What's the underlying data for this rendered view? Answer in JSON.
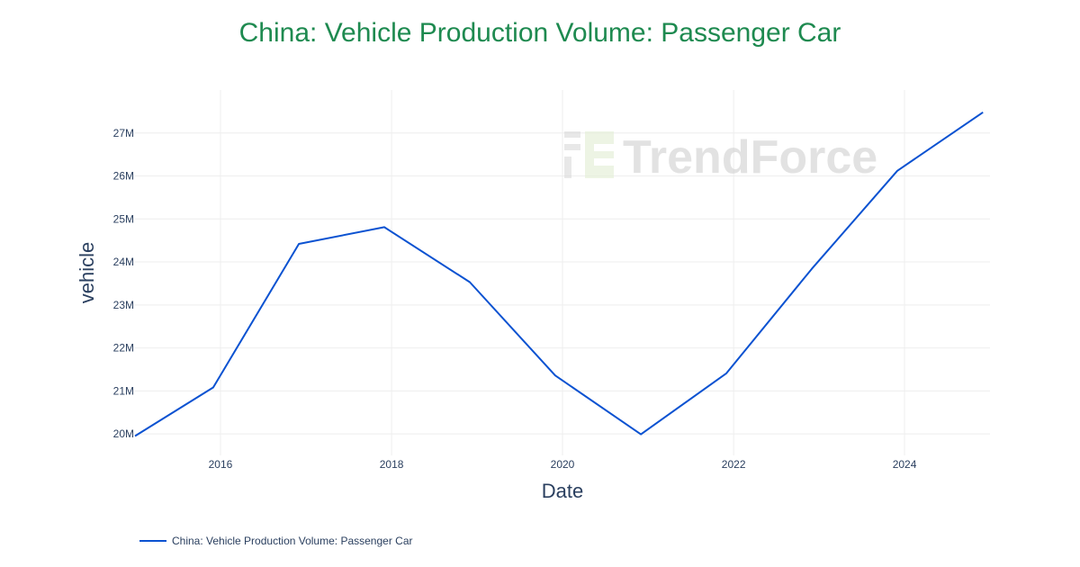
{
  "title": "China: Vehicle Production Volume: Passenger Car",
  "watermark": "TrendForce",
  "legend": {
    "label": "China: Vehicle Production Volume: Passenger Car"
  },
  "colors": {
    "title": "#1e8a50",
    "line": "#0b52d1",
    "axis_text": "#2a3f5f",
    "grid": "#eeeeee"
  },
  "chart_data": {
    "type": "line",
    "title": "China: Vehicle Production Volume: Passenger Car",
    "xlabel": "Date",
    "ylabel": "vehicle",
    "x_tick_labels": [
      "2016",
      "2018",
      "2020",
      "2022",
      "2024"
    ],
    "y_tick_labels": [
      "20M",
      "21M",
      "22M",
      "23M",
      "24M",
      "25M",
      "26M",
      "27M"
    ],
    "y_tick_values": [
      20000000,
      21000000,
      22000000,
      23000000,
      24000000,
      25000000,
      26000000,
      27000000
    ],
    "xlim": [
      "2015-01-01",
      "2024-12-31"
    ],
    "ylim": [
      19500000,
      28000000
    ],
    "grid": true,
    "legend_position": "bottom-left",
    "series": [
      {
        "name": "China: Vehicle Production Volume: Passenger Car",
        "x": [
          "2015-01-01",
          "2015-12-01",
          "2016-12-01",
          "2017-12-01",
          "2018-12-01",
          "2019-12-01",
          "2020-12-01",
          "2021-12-01",
          "2022-12-01",
          "2023-12-01",
          "2024-12-01"
        ],
        "values": [
          19950000,
          21080000,
          24420000,
          24810000,
          23530000,
          21360000,
          19990000,
          21410000,
          23840000,
          26120000,
          27480000
        ]
      }
    ]
  }
}
